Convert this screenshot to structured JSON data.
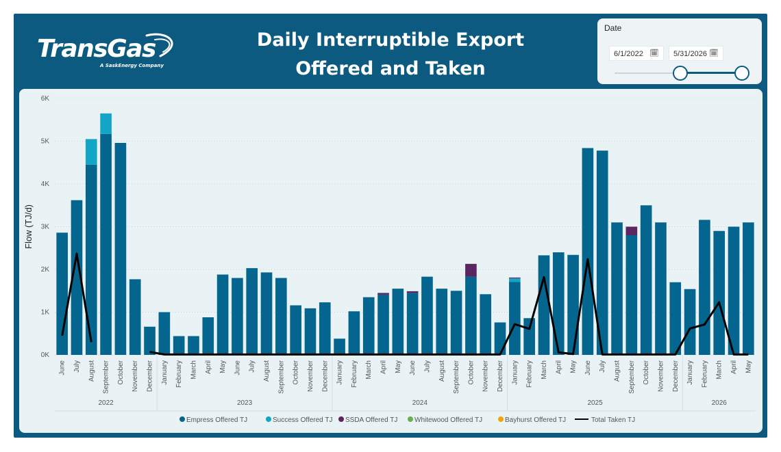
{
  "header": {
    "logo_text": "TransGas",
    "logo_tagline": "A SaskEnergy Company",
    "title": "Daily Interruptible Export\nOffered and Taken"
  },
  "slicer": {
    "label": "Date",
    "start_date": "6/1/2022",
    "end_date": "5/31/2026",
    "calendar_icon": "calendar-icon",
    "handle_positions": [
      0,
      1
    ]
  },
  "colors": {
    "empress": "#04668e",
    "success": "#12a5c8",
    "ssda": "#5a2560",
    "whitewood": "#6ab04c",
    "bayhurst": "#f0a500",
    "taken": "#000000"
  },
  "chart_data": {
    "type": "bar",
    "stacked": true,
    "ylabel": "Flow (TJ/d)",
    "ylim": [
      0,
      6000
    ],
    "yticks": [
      "0K",
      "1K",
      "2K",
      "3K",
      "4K",
      "5K",
      "6K"
    ],
    "ytick_values": [
      0,
      1000,
      2000,
      3000,
      4000,
      5000,
      6000
    ],
    "grid": true,
    "legend_position": "bottom",
    "categories": [
      "June",
      "July",
      "August",
      "September",
      "October",
      "November",
      "December",
      "January",
      "February",
      "March",
      "April",
      "May",
      "June",
      "July",
      "August",
      "September",
      "October",
      "November",
      "December",
      "January",
      "February",
      "March",
      "April",
      "May",
      "June",
      "July",
      "August",
      "September",
      "October",
      "November",
      "December",
      "January",
      "February",
      "March",
      "April",
      "May",
      "June",
      "July",
      "August",
      "September",
      "October",
      "November",
      "December",
      "January",
      "February",
      "March",
      "April",
      "May"
    ],
    "years": [
      {
        "label": "2022",
        "start": 0,
        "end": 6
      },
      {
        "label": "2023",
        "start": 7,
        "end": 18
      },
      {
        "label": "2024",
        "start": 19,
        "end": 30
      },
      {
        "label": "2025",
        "start": 31,
        "end": 42
      },
      {
        "label": "2026",
        "start": 43,
        "end": 47
      }
    ],
    "series": [
      {
        "name": "Empress Offered TJ",
        "color_key": "empress",
        "values": [
          2860,
          3620,
          4450,
          5170,
          4960,
          1770,
          660,
          1000,
          440,
          440,
          880,
          1880,
          1800,
          2030,
          1930,
          1800,
          1160,
          1090,
          1230,
          380,
          1020,
          1350,
          1410,
          1550,
          1450,
          1830,
          1550,
          1500,
          1830,
          1420,
          760,
          1710,
          860,
          2330,
          2400,
          2340,
          4840,
          4780,
          3100,
          2800,
          3500,
          3100,
          1700,
          1540,
          3160,
          2900,
          3000,
          3100
        ]
      },
      {
        "name": "Success Offered TJ",
        "color_key": "success",
        "values": [
          0,
          0,
          600,
          480,
          0,
          0,
          0,
          0,
          0,
          0,
          0,
          0,
          0,
          0,
          0,
          0,
          0,
          0,
          0,
          0,
          0,
          0,
          0,
          0,
          0,
          0,
          0,
          0,
          0,
          0,
          0,
          80,
          0,
          0,
          0,
          0,
          0,
          0,
          0,
          0,
          0,
          0,
          0,
          0,
          0,
          0,
          0,
          0
        ]
      },
      {
        "name": "SSDA Offered TJ",
        "color_key": "ssda",
        "values": [
          0,
          0,
          0,
          0,
          0,
          0,
          0,
          0,
          0,
          0,
          0,
          0,
          0,
          0,
          0,
          0,
          0,
          0,
          0,
          0,
          0,
          0,
          40,
          0,
          40,
          0,
          0,
          0,
          300,
          0,
          0,
          20,
          0,
          0,
          0,
          0,
          0,
          0,
          0,
          200,
          0,
          0,
          0,
          0,
          0,
          0,
          0,
          0
        ]
      },
      {
        "name": "Whitewood Offered TJ",
        "color_key": "whitewood",
        "values": [
          0,
          0,
          0,
          0,
          0,
          0,
          0,
          0,
          0,
          0,
          0,
          0,
          0,
          0,
          0,
          0,
          0,
          0,
          0,
          0,
          0,
          0,
          0,
          0,
          0,
          0,
          0,
          0,
          0,
          0,
          0,
          0,
          0,
          0,
          0,
          0,
          0,
          0,
          0,
          0,
          0,
          0,
          0,
          0,
          0,
          0,
          0,
          0
        ]
      },
      {
        "name": "Bayhurst Offered TJ",
        "color_key": "bayhurst",
        "values": [
          0,
          0,
          0,
          0,
          0,
          0,
          0,
          0,
          0,
          0,
          0,
          0,
          0,
          0,
          0,
          0,
          0,
          0,
          0,
          0,
          0,
          0,
          0,
          0,
          0,
          0,
          0,
          0,
          0,
          0,
          0,
          0,
          0,
          0,
          0,
          0,
          0,
          0,
          0,
          0,
          0,
          0,
          0,
          0,
          0,
          0,
          0,
          0
        ]
      }
    ],
    "line": {
      "name": "Total Taken TJ",
      "color_key": "taken",
      "segments": [
        {
          "start": 0,
          "values": [
            450,
            2370,
            300
          ]
        },
        {
          "start": 6,
          "values": [
            70,
            10,
            10,
            10,
            10,
            10,
            10,
            10,
            10,
            10,
            10,
            10,
            10,
            10,
            10,
            10,
            10,
            10,
            10,
            10,
            10,
            10,
            10,
            10,
            10,
            720,
            610,
            1820,
            60,
            20,
            2240,
            10,
            10,
            10,
            10,
            10,
            10,
            620,
            710,
            1230,
            10,
            10
          ]
        }
      ]
    }
  }
}
